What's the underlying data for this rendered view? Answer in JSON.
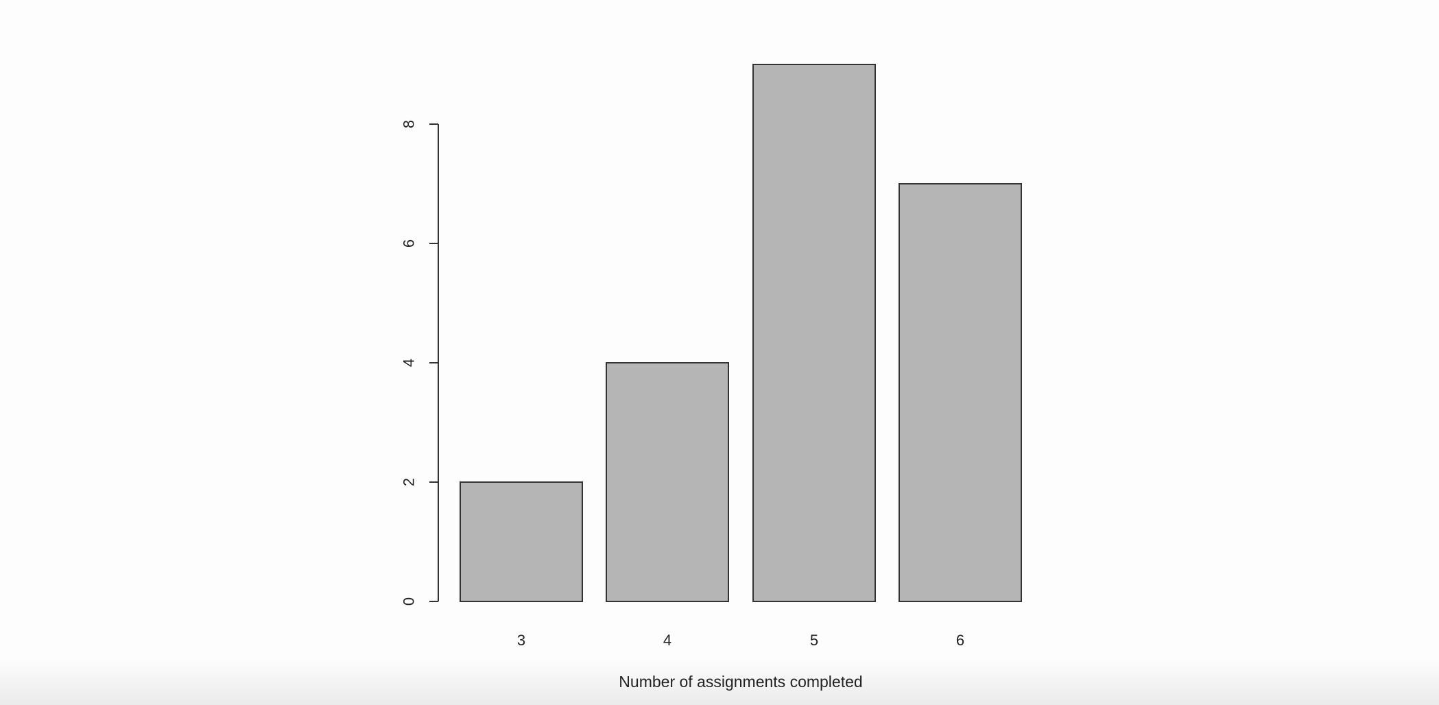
{
  "chart_data": {
    "type": "bar",
    "title": "",
    "xlabel": "Number of assignments completed",
    "ylabel": "",
    "categories": [
      "3",
      "4",
      "5",
      "6"
    ],
    "values": [
      2,
      4,
      9,
      7
    ],
    "yticks": [
      0,
      2,
      4,
      6,
      8
    ],
    "ylim": [
      0,
      9
    ],
    "bar_color": "#b5b5b5",
    "bar_border_color": "#333333",
    "grid": false,
    "legend": "none"
  }
}
